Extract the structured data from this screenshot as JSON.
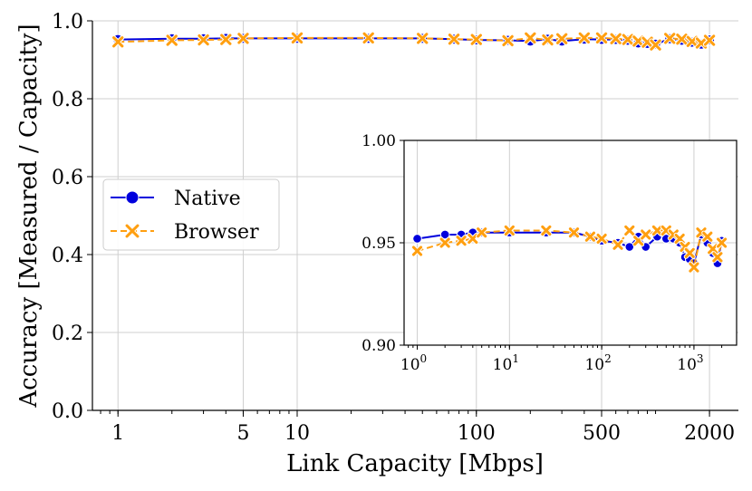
{
  "chart_data": {
    "type": "line",
    "xlabel": "Link Capacity [Mbps]",
    "ylabel": "Accuracy [Measured / Capacity]",
    "xscale": "log",
    "xlim": [
      0.72,
      2900
    ],
    "ylim": [
      0.0,
      1.0
    ],
    "grid": true,
    "legend_position": "center-left",
    "x_ticks": [
      {
        "value": 1,
        "label": "1"
      },
      {
        "value": 5,
        "label": "5"
      },
      {
        "value": 10,
        "label": "10"
      },
      {
        "value": 100,
        "label": "100"
      },
      {
        "value": 500,
        "label": "500"
      },
      {
        "value": 2000,
        "label": "2000"
      }
    ],
    "y_ticks": [
      {
        "value": 0.0,
        "label": "0.0"
      },
      {
        "value": 0.2,
        "label": "0.2"
      },
      {
        "value": 0.4,
        "label": "0.4"
      },
      {
        "value": 0.6,
        "label": "0.6"
      },
      {
        "value": 0.8,
        "label": "0.8"
      },
      {
        "value": 1.0,
        "label": "1.0"
      }
    ],
    "x": [
      1,
      2,
      3,
      4,
      5,
      10,
      25,
      50,
      75,
      100,
      150,
      200,
      250,
      300,
      400,
      500,
      600,
      700,
      800,
      900,
      1000,
      1200,
      1400,
      1600,
      1800,
      2000
    ],
    "series": [
      {
        "name": "Native",
        "color": "#0000dd",
        "marker": "circle",
        "linestyle": "solid",
        "values": [
          0.952,
          0.954,
          0.954,
          0.955,
          0.955,
          0.955,
          0.955,
          0.955,
          0.953,
          0.951,
          0.95,
          0.948,
          0.953,
          0.948,
          0.953,
          0.952,
          0.952,
          0.95,
          0.943,
          0.942,
          0.94,
          0.954,
          0.95,
          0.945,
          0.94,
          0.951
        ]
      },
      {
        "name": "Browser",
        "color": "#ff9f10",
        "marker": "x",
        "linestyle": "dashed",
        "values": [
          0.946,
          0.95,
          0.951,
          0.952,
          0.955,
          0.956,
          0.956,
          0.955,
          0.953,
          0.952,
          0.949,
          0.956,
          0.951,
          0.954,
          0.956,
          0.956,
          0.954,
          0.952,
          0.948,
          0.945,
          0.938,
          0.955,
          0.953,
          0.947,
          0.943,
          0.95
        ]
      }
    ],
    "inset": {
      "xscale": "log",
      "xlim": [
        0.72,
        2900
      ],
      "ylim": [
        0.9,
        1.0
      ],
      "grid": true,
      "x_ticks": [
        {
          "value": 1,
          "base": "10",
          "exp": "0"
        },
        {
          "value": 10,
          "base": "10",
          "exp": "1"
        },
        {
          "value": 100,
          "base": "10",
          "exp": "2"
        },
        {
          "value": 1000,
          "base": "10",
          "exp": "3"
        }
      ],
      "y_ticks": [
        {
          "value": 0.9,
          "label": "0.90"
        },
        {
          "value": 0.95,
          "label": "0.95"
        },
        {
          "value": 1.0,
          "label": "1.00"
        }
      ]
    }
  }
}
